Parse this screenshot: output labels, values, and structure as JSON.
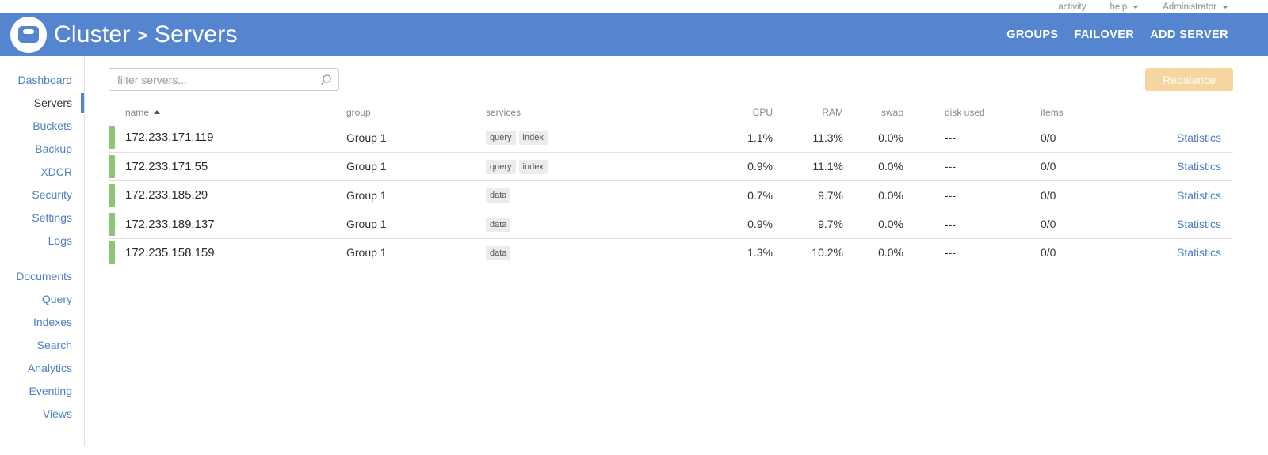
{
  "topbar": {
    "links": [
      {
        "label": "activity",
        "caret": false
      },
      {
        "label": "help",
        "caret": true
      },
      {
        "label": "Administrator",
        "caret": true
      }
    ]
  },
  "header": {
    "breadcrumb": {
      "root": "Cluster",
      "separator": ">",
      "current": "Servers"
    },
    "actions": [
      {
        "label": "GROUPS"
      },
      {
        "label": "FAILOVER"
      },
      {
        "label": "ADD SERVER"
      }
    ]
  },
  "sidebar": {
    "active_item": "Servers",
    "groups": [
      {
        "items": [
          "Dashboard",
          "Servers",
          "Buckets",
          "Backup",
          "XDCR",
          "Security",
          "Settings",
          "Logs"
        ]
      },
      {
        "items": [
          "Documents",
          "Query",
          "Indexes",
          "Search",
          "Analytics",
          "Eventing",
          "Views"
        ]
      }
    ]
  },
  "main": {
    "filter": {
      "placeholder": "filter servers..."
    },
    "rebalance_label": "Rebalance",
    "table": {
      "columns": [
        "name",
        "group",
        "services",
        "CPU",
        "RAM",
        "swap",
        "disk used",
        "items"
      ],
      "sort": {
        "column": "name",
        "direction": "ascending"
      },
      "rows": [
        {
          "name": "172.233.171.119",
          "group": "Group 1",
          "services": [
            "query",
            "index"
          ],
          "cpu": "1.1%",
          "ram": "11.3%",
          "swap": "0.0%",
          "disk_used": "---",
          "items": "0/0",
          "link": "Statistics"
        },
        {
          "name": "172.233.171.55",
          "group": "Group 1",
          "services": [
            "query",
            "index"
          ],
          "cpu": "0.9%",
          "ram": "11.1%",
          "swap": "0.0%",
          "disk_used": "---",
          "items": "0/0",
          "link": "Statistics"
        },
        {
          "name": "172.233.185.29",
          "group": "Group 1",
          "services": [
            "data"
          ],
          "cpu": "0.7%",
          "ram": "9.7%",
          "swap": "0.0%",
          "disk_used": "---",
          "items": "0/0",
          "link": "Statistics"
        },
        {
          "name": "172.233.189.137",
          "group": "Group 1",
          "services": [
            "data"
          ],
          "cpu": "0.9%",
          "ram": "9.7%",
          "swap": "0.0%",
          "disk_used": "---",
          "items": "0/0",
          "link": "Statistics"
        },
        {
          "name": "172.235.158.159",
          "group": "Group 1",
          "services": [
            "data"
          ],
          "cpu": "1.3%",
          "ram": "10.2%",
          "swap": "0.0%",
          "disk_used": "---",
          "items": "0/0",
          "link": "Statistics"
        }
      ]
    }
  },
  "colors": {
    "header-blue": "#5585CE",
    "link-blue": "#4E7FC1",
    "health-green": "#8CC573",
    "rebalance-disabled": "#F5D6A0",
    "badge-bg": "#ECECEC"
  },
  "icons": {
    "logo": "couchbase-logo",
    "search": "search-icon",
    "sort_ascending": "sort-ascending-icon",
    "caret": "caret-down-icon"
  }
}
